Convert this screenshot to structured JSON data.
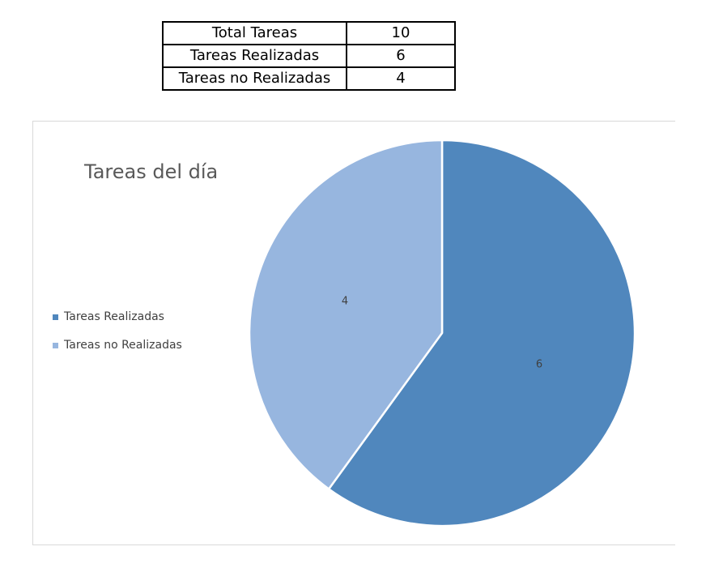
{
  "summary": {
    "rows": [
      {
        "label": "Total Tareas",
        "value": "10"
      },
      {
        "label": "Tareas Realizadas",
        "value": "6"
      },
      {
        "label": "Tareas no Realizadas",
        "value": "4"
      }
    ]
  },
  "chart_data": {
    "type": "pie",
    "title": "Tareas del día",
    "categories": [
      "Tareas Realizadas",
      "Tareas no Realizadas"
    ],
    "values": [
      6,
      4
    ],
    "data_labels": [
      "6",
      "4"
    ],
    "colors": [
      "#5087bd",
      "#97b6df"
    ],
    "legend_position": "left"
  }
}
